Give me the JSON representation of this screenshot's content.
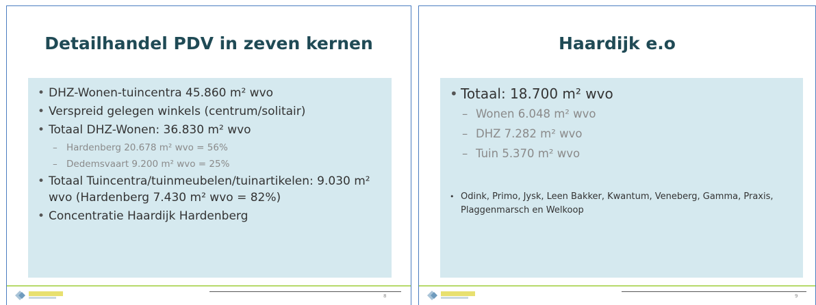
{
  "slides": [
    {
      "title": "Detailhandel PDV in zeven kernen",
      "bullets": [
        {
          "text": "DHZ-Wonen-tuincentra 45.860 m² wvo",
          "level": 1
        },
        {
          "text": "Verspreid gelegen winkels (centrum/solitair)",
          "level": 1
        },
        {
          "text": "Totaal DHZ-Wonen: 36.830 m² wvo",
          "level": 1
        },
        {
          "text": "Hardenberg 20.678 m² wvo = 56%",
          "level": 2
        },
        {
          "text": "Dedemsvaart 9.200 m² wvo = 25%",
          "level": 2
        },
        {
          "text": "Totaal Tuincentra/tuinmeubelen/tuinartikelen: 9.030 m² wvo (Hardenberg 7.430 m² wvo = 82%)",
          "level": 1
        },
        {
          "text": "Concentratie Haardijk Hardenberg",
          "level": 1
        }
      ],
      "page": "8"
    },
    {
      "title": "Haardijk e.o",
      "bullets": [
        {
          "text": "Totaal: 18.700 m² wvo",
          "level": 1
        },
        {
          "text": "Wonen 6.048 m² wvo",
          "level": 2
        },
        {
          "text": "DHZ 7.282 m² wvo",
          "level": 2
        },
        {
          "text": "Tuin 5.370 m² wvo",
          "level": 2
        },
        {
          "text": "Odink, Primo, Jysk, Leen Bakker, Kwantum, Veneberg, Gamma, Praxis, Plaggenmarsch en Welkoop",
          "level": 3
        }
      ],
      "page": "9"
    }
  ]
}
